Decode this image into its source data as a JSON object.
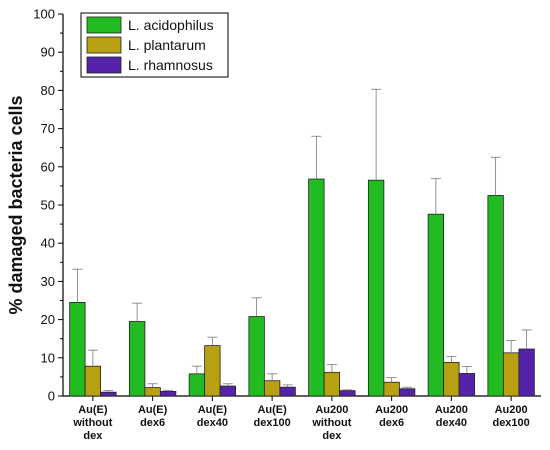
{
  "chart_data": {
    "type": "bar",
    "title": "",
    "xlabel": "",
    "ylabel": "% damaged bacteria cells",
    "ylim": [
      0,
      100
    ],
    "yticks": [
      0,
      10,
      20,
      30,
      40,
      50,
      60,
      70,
      80,
      90,
      100
    ],
    "grid": false,
    "legend_position": "top-left",
    "categories": [
      [
        "Au(E)",
        "without",
        "dex"
      ],
      [
        "Au(E)",
        "dex6"
      ],
      [
        "Au(E)",
        "dex40"
      ],
      [
        "Au(E)",
        "dex100"
      ],
      [
        "Au200",
        "without",
        "dex"
      ],
      [
        "Au200",
        "dex6"
      ],
      [
        "Au200",
        "dex40"
      ],
      [
        "Au200",
        "dex100"
      ]
    ],
    "series": [
      {
        "name": "L. acidophilus",
        "color": "#22bb22",
        "values": [
          24.5,
          19.5,
          5.8,
          20.8,
          56.8,
          56.5,
          47.6,
          52.5
        ],
        "errors": [
          8.7,
          4.8,
          2.0,
          4.9,
          11.2,
          23.8,
          9.3,
          10.0
        ]
      },
      {
        "name": "L. plantarum",
        "color": "#b8a013",
        "values": [
          7.8,
          2.2,
          13.2,
          4.0,
          6.2,
          3.6,
          8.8,
          11.3
        ],
        "errors": [
          4.2,
          1.0,
          2.2,
          1.8,
          2.0,
          1.2,
          1.5,
          3.2
        ]
      },
      {
        "name": "L. rhamnosus",
        "color": "#5522aa",
        "values": [
          1.0,
          1.2,
          2.6,
          2.3,
          1.4,
          1.9,
          5.9,
          12.3
        ],
        "errors": [
          0.4,
          0.3,
          0.6,
          0.6,
          0.2,
          0.4,
          1.8,
          5.0
        ]
      }
    ]
  }
}
